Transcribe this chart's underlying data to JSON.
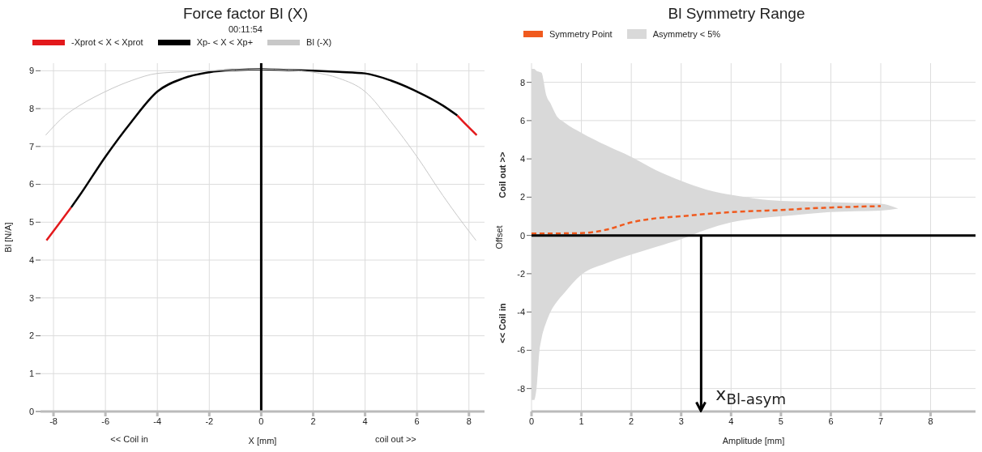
{
  "chart_data": [
    {
      "type": "line",
      "title": "Force factor Bl (X)",
      "subtitle": "00:11:54",
      "xlabel": "X [mm]",
      "ylabel": "Bl [N/A]",
      "annotations": [
        "<< Coil in",
        "coil out >>"
      ],
      "xlim": [
        -8.5,
        8.6
      ],
      "xticks": [
        -8,
        -6,
        -4,
        -2,
        0,
        2,
        4,
        6,
        8
      ],
      "ylim": [
        0,
        9.2
      ],
      "yticks": [
        0,
        1,
        2,
        3,
        4,
        5,
        6,
        7,
        8,
        9
      ],
      "grid": true,
      "legend": "top left",
      "ref_lines": [
        {
          "axis": "x",
          "value": 0,
          "color": "#000000"
        }
      ],
      "series": [
        {
          "name": "-Xprot < X < Xprot",
          "color": "#e3191c",
          "x": [
            -8.27,
            -7.8,
            -7.32,
            0,
            7.55,
            7.9,
            8.3
          ],
          "values": [
            4.52,
            4.95,
            5.39,
            null,
            7.82,
            7.57,
            7.3
          ]
        },
        {
          "name": "Xp- < X < Xp+",
          "color": "#000000",
          "x": [
            -7.32,
            -7,
            -6,
            -5,
            -4,
            -3,
            -2,
            -1,
            0,
            1,
            2,
            3,
            4,
            5,
            6,
            7,
            7.55
          ],
          "values": [
            5.39,
            5.7,
            6.73,
            7.65,
            8.45,
            8.8,
            8.96,
            9.02,
            9.04,
            9.02,
            9.0,
            8.97,
            8.93,
            8.74,
            8.45,
            8.08,
            7.82
          ]
        },
        {
          "name": "Bl (-X)",
          "color": "#c8c8c8",
          "x": [
            -8.3,
            -7.55,
            -7,
            -6,
            -5,
            -4,
            -3,
            -2,
            -1,
            0,
            1,
            2,
            3,
            4,
            5,
            6,
            7,
            7.32,
            8.27
          ],
          "values": [
            7.3,
            7.82,
            8.08,
            8.45,
            8.74,
            8.93,
            8.97,
            9.0,
            9.02,
            9.04,
            9.02,
            8.96,
            8.8,
            8.45,
            7.65,
            6.73,
            5.7,
            5.39,
            4.52
          ]
        }
      ]
    },
    {
      "type": "area",
      "title": "Bl Symmetry Range",
      "xlabel": "Amplitude [mm]",
      "ylabel": "Offset",
      "annotations": [
        "Coil out >>",
        "<< Coil in",
        "Asymmetry < 5%"
      ],
      "xlim": [
        0,
        8.9
      ],
      "xticks": [
        0,
        1,
        2,
        3,
        4,
        5,
        6,
        7,
        8
      ],
      "ylim": [
        -9.2,
        9
      ],
      "yticks": [
        -8,
        -6,
        -4,
        -2,
        0,
        2,
        4,
        6,
        8
      ],
      "grid": true,
      "legend": "top left",
      "ref_lines": [
        {
          "axis": "y",
          "value": 0,
          "color": "#000000"
        },
        {
          "axis": "x",
          "value": 3.4,
          "label": "x$_{Bl-asym}$",
          "color": "#000000"
        }
      ],
      "series": [
        {
          "name": "Symmetry Point",
          "type": "line",
          "line_style": "dashed",
          "color": "#f05a1e",
          "x": [
            0,
            0.05,
            0.1,
            0.16,
            0.2,
            0.3,
            0.38,
            0.5,
            0.66,
            1,
            1.5,
            2,
            2.5,
            3,
            3.5,
            4,
            4.5,
            5,
            5.5,
            6,
            6.5,
            7,
            7.35
          ],
          "values": [
            0.1,
            0.1,
            0.1,
            0.1,
            0.1,
            0.1,
            0.1,
            0.1,
            0.11,
            0.12,
            0.3,
            0.68,
            0.9,
            1.0,
            1.12,
            1.22,
            1.28,
            1.33,
            1.4,
            1.46,
            1.5,
            1.53,
            null
          ],
          "lower": [
            -8.6,
            -8.6,
            -8.0,
            -6.0,
            -5.4,
            -4.5,
            -4.0,
            -3.5,
            -3.0,
            -2.05,
            -1.45,
            -1.0,
            -0.6,
            -0.2,
            0.3,
            0.68,
            0.88,
            1.0,
            1.12,
            1.22,
            1.27,
            1.3,
            1.4
          ],
          "upper": [
            8.7,
            8.7,
            8.6,
            8.55,
            8.5,
            7.3,
            6.9,
            6.26,
            5.9,
            5.36,
            4.7,
            4.1,
            3.4,
            2.85,
            2.4,
            2.12,
            1.92,
            1.8,
            1.77,
            1.74,
            1.7,
            1.66,
            1.4
          ]
        }
      ]
    }
  ]
}
